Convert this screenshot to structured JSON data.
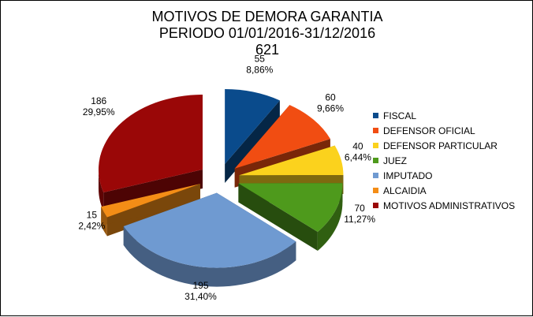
{
  "chart_data": {
    "type": "pie",
    "title_lines": [
      "MOTIVOS DE DEMORA GARANTIA",
      "PERIODO 01/01/2016-31/12/2016",
      "621"
    ],
    "slices": [
      {
        "name": "FISCAL",
        "value": 55,
        "percent": "8,86%",
        "color": "#0a4b8c"
      },
      {
        "name": "DEFENSOR OFICIAL",
        "value": 60,
        "percent": "9,66%",
        "color": "#f14d12"
      },
      {
        "name": "DEFENSOR PARTICULAR",
        "value": 40,
        "percent": "6,44%",
        "color": "#fbd21d"
      },
      {
        "name": "JUEZ",
        "value": 70,
        "percent": "11,27%",
        "color": "#4e9a1c"
      },
      {
        "name": "IMPUTADO",
        "value": 195,
        "percent": "31,40%",
        "color": "#6f9ad1"
      },
      {
        "name": "ALCAIDIA",
        "value": 15,
        "percent": "2,42%",
        "color": "#f48d16"
      },
      {
        "name": "MOTIVOS ADMINISTRATIVOS",
        "value": 186,
        "percent": "29,95%",
        "color": "#9a0707"
      }
    ],
    "legend_position": "right"
  }
}
